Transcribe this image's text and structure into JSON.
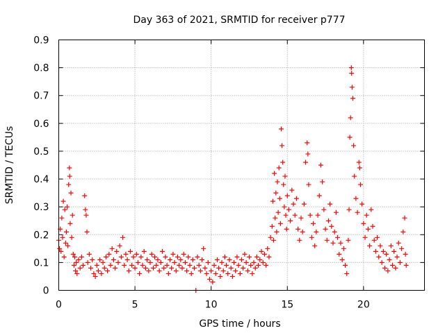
{
  "chart_data": {
    "type": "scatter",
    "title": "Day 363 of 2021, SRMTID for receiver p777",
    "xlabel": "GPS time / hours",
    "ylabel": "SRMTID / TECUs",
    "xlim": [
      0,
      24
    ],
    "ylim": [
      0,
      0.9
    ],
    "xticks": [
      0,
      5,
      10,
      15,
      20
    ],
    "xtick_labels": [
      "0",
      "5",
      "10",
      "15",
      "20"
    ],
    "yticks": [
      0,
      0.1,
      0.2,
      0.3,
      0.4,
      0.5,
      0.6,
      0.7,
      0.8,
      0.9
    ],
    "ytick_labels": [
      "0",
      "0.1",
      "0.2",
      "0.3",
      "0.4",
      "0.5",
      "0.6",
      "0.7",
      "0.8",
      "0.9"
    ],
    "grid": true,
    "marker": "+",
    "marker_color": "#ff0000",
    "series": [
      {
        "name": "SRMTID",
        "points": [
          [
            0.0,
            0.18
          ],
          [
            0.05,
            0.15
          ],
          [
            0.1,
            0.22
          ],
          [
            0.15,
            0.14
          ],
          [
            0.2,
            0.26
          ],
          [
            0.25,
            0.19
          ],
          [
            0.3,
            0.32
          ],
          [
            0.35,
            0.12
          ],
          [
            0.4,
            0.29
          ],
          [
            0.45,
            0.17
          ],
          [
            0.5,
            0.21
          ],
          [
            0.55,
            0.3
          ],
          [
            0.6,
            0.16
          ],
          [
            0.65,
            0.38
          ],
          [
            0.7,
            0.44
          ],
          [
            0.72,
            0.41
          ],
          [
            0.75,
            0.24
          ],
          [
            0.8,
            0.35
          ],
          [
            0.85,
            0.19
          ],
          [
            0.9,
            0.27
          ],
          [
            0.95,
            0.13
          ],
          [
            1.0,
            0.09
          ],
          [
            1.05,
            0.12
          ],
          [
            1.1,
            0.07
          ],
          [
            1.15,
            0.1
          ],
          [
            1.2,
            0.06
          ],
          [
            1.3,
            0.11
          ],
          [
            1.4,
            0.08
          ],
          [
            1.5,
            0.12
          ],
          [
            1.6,
            0.09
          ],
          [
            1.7,
            0.34
          ],
          [
            1.75,
            0.29
          ],
          [
            1.8,
            0.27
          ],
          [
            1.85,
            0.21
          ],
          [
            1.9,
            0.1
          ],
          [
            2.0,
            0.13
          ],
          [
            2.1,
            0.08
          ],
          [
            2.2,
            0.11
          ],
          [
            2.3,
            0.06
          ],
          [
            2.4,
            0.05
          ],
          [
            2.5,
            0.09
          ],
          [
            2.6,
            0.07
          ],
          [
            2.7,
            0.11
          ],
          [
            2.8,
            0.06
          ],
          [
            2.9,
            0.1
          ],
          [
            3.0,
            0.08
          ],
          [
            3.1,
            0.12
          ],
          [
            3.2,
            0.07
          ],
          [
            3.3,
            0.13
          ],
          [
            3.4,
            0.09
          ],
          [
            3.5,
            0.15
          ],
          [
            3.6,
            0.11
          ],
          [
            3.7,
            0.08
          ],
          [
            3.8,
            0.14
          ],
          [
            3.9,
            0.1
          ],
          [
            4.0,
            0.16
          ],
          [
            4.1,
            0.12
          ],
          [
            4.2,
            0.19
          ],
          [
            4.3,
            0.09
          ],
          [
            4.4,
            0.13
          ],
          [
            4.5,
            0.11
          ],
          [
            4.6,
            0.07
          ],
          [
            4.7,
            0.14
          ],
          [
            4.8,
            0.09
          ],
          [
            4.9,
            0.12
          ],
          [
            5.0,
            0.08
          ],
          [
            5.1,
            0.13
          ],
          [
            5.2,
            0.1
          ],
          [
            5.3,
            0.06
          ],
          [
            5.4,
            0.12
          ],
          [
            5.5,
            0.09
          ],
          [
            5.6,
            0.14
          ],
          [
            5.7,
            0.08
          ],
          [
            5.8,
            0.11
          ],
          [
            5.9,
            0.07
          ],
          [
            6.0,
            0.1
          ],
          [
            6.1,
            0.13
          ],
          [
            6.2,
            0.08
          ],
          [
            6.3,
            0.12
          ],
          [
            6.4,
            0.09
          ],
          [
            6.5,
            0.11
          ],
          [
            6.6,
            0.07
          ],
          [
            6.7,
            0.1
          ],
          [
            6.8,
            0.14
          ],
          [
            6.9,
            0.08
          ],
          [
            7.0,
            0.12
          ],
          [
            7.1,
            0.09
          ],
          [
            7.2,
            0.06
          ],
          [
            7.3,
            0.11
          ],
          [
            7.4,
            0.08
          ],
          [
            7.5,
            0.13
          ],
          [
            7.6,
            0.1
          ],
          [
            7.7,
            0.07
          ],
          [
            7.8,
            0.12
          ],
          [
            7.9,
            0.09
          ],
          [
            8.0,
            0.11
          ],
          [
            8.1,
            0.08
          ],
          [
            8.2,
            0.13
          ],
          [
            8.3,
            0.1
          ],
          [
            8.4,
            0.07
          ],
          [
            8.5,
            0.12
          ],
          [
            8.6,
            0.09
          ],
          [
            8.7,
            0.06
          ],
          [
            8.8,
            0.11
          ],
          [
            8.9,
            0.08
          ],
          [
            9.0,
            0.0
          ],
          [
            9.1,
            0.12
          ],
          [
            9.2,
            0.09
          ],
          [
            9.3,
            0.07
          ],
          [
            9.4,
            0.11
          ],
          [
            9.5,
            0.15
          ],
          [
            9.6,
            0.08
          ],
          [
            9.7,
            0.06
          ],
          [
            9.8,
            0.1
          ],
          [
            9.9,
            0.04
          ],
          [
            10.0,
            0.07
          ],
          [
            10.1,
            0.03
          ],
          [
            10.2,
            0.09
          ],
          [
            10.3,
            0.06
          ],
          [
            10.4,
            0.11
          ],
          [
            10.5,
            0.08
          ],
          [
            10.6,
            0.05
          ],
          [
            10.7,
            0.1
          ],
          [
            10.8,
            0.07
          ],
          [
            10.9,
            0.12
          ],
          [
            11.0,
            0.09
          ],
          [
            11.1,
            0.06
          ],
          [
            11.2,
            0.11
          ],
          [
            11.3,
            0.08
          ],
          [
            11.4,
            0.05
          ],
          [
            11.5,
            0.1
          ],
          [
            11.6,
            0.07
          ],
          [
            11.7,
            0.12
          ],
          [
            11.8,
            0.09
          ],
          [
            11.9,
            0.06
          ],
          [
            12.0,
            0.11
          ],
          [
            12.1,
            0.08
          ],
          [
            12.2,
            0.13
          ],
          [
            12.3,
            0.1
          ],
          [
            12.4,
            0.07
          ],
          [
            12.5,
            0.12
          ],
          [
            12.6,
            0.09
          ],
          [
            12.7,
            0.06
          ],
          [
            12.8,
            0.1
          ],
          [
            12.9,
            0.08
          ],
          [
            13.0,
            0.12
          ],
          [
            13.1,
            0.09
          ],
          [
            13.2,
            0.11
          ],
          [
            13.3,
            0.14
          ],
          [
            13.4,
            0.1
          ],
          [
            13.5,
            0.13
          ],
          [
            13.6,
            0.09
          ],
          [
            13.7,
            0.15
          ],
          [
            13.8,
            0.12
          ],
          [
            13.9,
            0.19
          ],
          [
            14.0,
            0.23
          ],
          [
            14.05,
            0.32
          ],
          [
            14.1,
            0.18
          ],
          [
            14.15,
            0.42
          ],
          [
            14.2,
            0.26
          ],
          [
            14.25,
            0.35
          ],
          [
            14.3,
            0.21
          ],
          [
            14.35,
            0.39
          ],
          [
            14.4,
            0.28
          ],
          [
            14.45,
            0.44
          ],
          [
            14.5,
            0.33
          ],
          [
            14.55,
            0.24
          ],
          [
            14.6,
            0.58
          ],
          [
            14.65,
            0.52
          ],
          [
            14.7,
            0.46
          ],
          [
            14.75,
            0.38
          ],
          [
            14.8,
            0.3
          ],
          [
            14.85,
            0.41
          ],
          [
            14.9,
            0.27
          ],
          [
            14.95,
            0.22
          ],
          [
            15.0,
            0.34
          ],
          [
            15.1,
            0.29
          ],
          [
            15.2,
            0.25
          ],
          [
            15.3,
            0.36
          ],
          [
            15.4,
            0.31
          ],
          [
            15.5,
            0.27
          ],
          [
            15.6,
            0.33
          ],
          [
            15.7,
            0.22
          ],
          [
            15.8,
            0.18
          ],
          [
            15.9,
            0.26
          ],
          [
            16.0,
            0.21
          ],
          [
            16.1,
            0.31
          ],
          [
            16.2,
            0.46
          ],
          [
            16.3,
            0.53
          ],
          [
            16.35,
            0.49
          ],
          [
            16.4,
            0.38
          ],
          [
            16.5,
            0.27
          ],
          [
            16.6,
            0.19
          ],
          [
            16.7,
            0.24
          ],
          [
            16.8,
            0.16
          ],
          [
            16.9,
            0.21
          ],
          [
            17.0,
            0.27
          ],
          [
            17.1,
            0.34
          ],
          [
            17.2,
            0.45
          ],
          [
            17.3,
            0.39
          ],
          [
            17.4,
            0.29
          ],
          [
            17.5,
            0.22
          ],
          [
            17.6,
            0.18
          ],
          [
            17.7,
            0.25
          ],
          [
            17.8,
            0.31
          ],
          [
            17.9,
            0.23
          ],
          [
            18.0,
            0.17
          ],
          [
            18.1,
            0.21
          ],
          [
            18.2,
            0.28
          ],
          [
            18.3,
            0.19
          ],
          [
            18.4,
            0.13
          ],
          [
            18.5,
            0.17
          ],
          [
            18.6,
            0.11
          ],
          [
            18.7,
            0.15
          ],
          [
            18.8,
            0.09
          ],
          [
            18.9,
            0.06
          ],
          [
            19.0,
            0.18
          ],
          [
            19.05,
            0.29
          ],
          [
            19.1,
            0.55
          ],
          [
            19.15,
            0.62
          ],
          [
            19.2,
            0.8
          ],
          [
            19.22,
            0.78
          ],
          [
            19.25,
            0.73
          ],
          [
            19.3,
            0.69
          ],
          [
            19.35,
            0.52
          ],
          [
            19.4,
            0.41
          ],
          [
            19.5,
            0.33
          ],
          [
            19.6,
            0.28
          ],
          [
            19.7,
            0.46
          ],
          [
            19.75,
            0.44
          ],
          [
            19.8,
            0.38
          ],
          [
            19.9,
            0.31
          ],
          [
            20.0,
            0.24
          ],
          [
            20.1,
            0.19
          ],
          [
            20.2,
            0.27
          ],
          [
            20.3,
            0.22
          ],
          [
            20.4,
            0.16
          ],
          [
            20.5,
            0.29
          ],
          [
            20.6,
            0.23
          ],
          [
            20.7,
            0.18
          ],
          [
            20.8,
            0.14
          ],
          [
            20.9,
            0.19
          ],
          [
            21.0,
            0.12
          ],
          [
            21.1,
            0.16
          ],
          [
            21.2,
            0.1
          ],
          [
            21.3,
            0.14
          ],
          [
            21.4,
            0.08
          ],
          [
            21.5,
            0.13
          ],
          [
            21.6,
            0.07
          ],
          [
            21.7,
            0.11
          ],
          [
            21.8,
            0.16
          ],
          [
            21.9,
            0.09
          ],
          [
            22.0,
            0.14
          ],
          [
            22.1,
            0.08
          ],
          [
            22.2,
            0.12
          ],
          [
            22.3,
            0.17
          ],
          [
            22.4,
            0.1
          ],
          [
            22.5,
            0.15
          ],
          [
            22.6,
            0.21
          ],
          [
            22.7,
            0.26
          ],
          [
            22.75,
            0.13
          ],
          [
            22.8,
            0.09
          ]
        ]
      }
    ]
  }
}
